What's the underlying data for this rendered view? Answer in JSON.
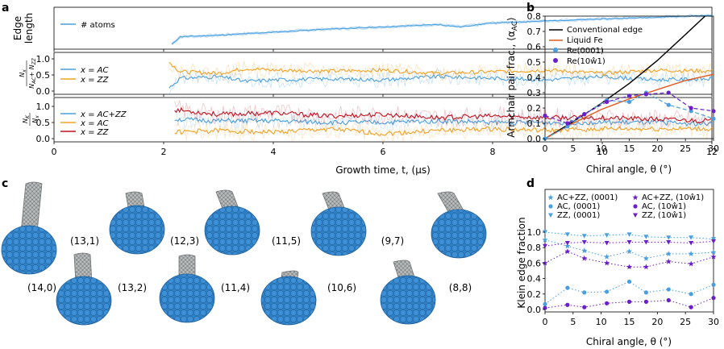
{
  "panel_labels": {
    "a": "a",
    "b": "b",
    "c": "c",
    "d": "d"
  },
  "colors": {
    "blue": "#4a9fe0",
    "orange": "#f2a124",
    "red": "#c1121f",
    "black": "#000000",
    "liquid": "#e05a1e",
    "purple": "#6a1fc9",
    "nano_blue": "#3d8fd6",
    "tube_gray": "#8a8f90"
  },
  "panel_a": {
    "xlabel": "Growth time, t, (µs)",
    "xticks": [
      "0",
      "2",
      "4",
      "6",
      "8",
      "10",
      "12"
    ],
    "top": {
      "ylabel_line1": "Edge",
      "ylabel_line2": "length",
      "legend": [
        "# atoms"
      ]
    },
    "mid": {
      "ylabel": "N_x / (N_AC+N_ZZ)",
      "ylabel_num": "N",
      "ylabel_num_sub": "x",
      "ylabel_den": "N",
      "ylabel_den_sub": "AC",
      "ylabel_den_mid": "+ N",
      "ylabel_den_sub2": "ZZ",
      "yticks": [
        "0.0",
        "0.5",
        "1.0"
      ],
      "legend": [
        "x = AC",
        "x = ZZ"
      ]
    },
    "bot": {
      "ylabel_num": "N",
      "ylabel_num_sub": "K",
      "ylabel_den": "N",
      "ylabel_den_sub": "x",
      "yticks": [
        "0.0",
        "0.5",
        "1.0"
      ],
      "legend": [
        "x = AC+ZZ",
        "x = AC",
        "x = ZZ"
      ]
    }
  },
  "panel_b": {
    "ylabel": "Armchair pair frac., ⟨α",
    "ylabel_sub": "AC",
    "ylabel_end": "⟩",
    "xlabel": "Chiral angle, θ (°)",
    "xticks": [
      "0",
      "5",
      "10",
      "15",
      "20",
      "25",
      "30"
    ],
    "yticks": [
      "0.0",
      "0.1",
      "0.2",
      "0.3",
      "0.4",
      "0.5",
      "0.6",
      "0.7",
      "0.8"
    ],
    "legend": [
      "Conventional edge",
      "Liquid Fe",
      "Re(0001)",
      "Re(10ŵ1)"
    ]
  },
  "panel_c": {
    "chiralities_top": [
      "(13,1)",
      "(12,3)",
      "(11,5)",
      "(9,7)"
    ],
    "chiralities_bottom": [
      "(14,0)",
      "(13,2)",
      "(11,4)",
      "(10,6)",
      "(8,8)"
    ]
  },
  "panel_d": {
    "ylabel": "Klein edge fraction",
    "xlabel": "Chiral angle, θ (°)",
    "xticks": [
      "0",
      "5",
      "10",
      "15",
      "20",
      "25",
      "30"
    ],
    "yticks": [
      "0.0",
      "0.2",
      "0.4",
      "0.6",
      "0.8",
      "1.0"
    ],
    "legend": [
      "AC+ZZ, (0001)",
      "AC, (0001)",
      "ZZ, (0001)",
      "AC+ZZ, (10ŵ1)",
      "AC, (10ŵ1)",
      "ZZ, (10ŵ1)"
    ]
  },
  "chart_data": [
    {
      "type": "line",
      "panel": "a-top",
      "xlabel": "Growth time, t, (µs)",
      "ylabel": "Edge length",
      "xlim": [
        0,
        12
      ],
      "series": [
        {
          "name": "# atoms",
          "x": [
            2.15,
            2.3,
            3,
            4,
            5,
            6,
            7,
            7.4,
            8,
            9,
            10,
            11,
            12
          ],
          "y": [
            0.05,
            0.3,
            0.35,
            0.45,
            0.55,
            0.62,
            0.7,
            0.62,
            0.75,
            0.82,
            0.88,
            0.94,
            1.0
          ]
        }
      ]
    },
    {
      "type": "line",
      "panel": "a-mid",
      "ylabel": "N_x/(N_AC+N_ZZ)",
      "xlim": [
        0,
        12
      ],
      "ylim": [
        0,
        1
      ],
      "series": [
        {
          "name": "x = AC",
          "x": [
            2.1,
            2.3,
            3,
            3.5,
            4,
            5,
            6,
            7,
            8,
            9,
            10,
            11,
            12
          ],
          "y": [
            0.1,
            0.4,
            0.45,
            0.3,
            0.35,
            0.38,
            0.35,
            0.45,
            0.4,
            0.35,
            0.45,
            0.35,
            0.38
          ]
        },
        {
          "name": "x = ZZ",
          "x": [
            2.1,
            2.3,
            3,
            3.5,
            4,
            5,
            6,
            7,
            8,
            9,
            10,
            11,
            12
          ],
          "y": [
            0.9,
            0.6,
            0.55,
            0.7,
            0.65,
            0.62,
            0.65,
            0.55,
            0.6,
            0.65,
            0.55,
            0.65,
            0.62
          ]
        }
      ]
    },
    {
      "type": "line",
      "panel": "a-bot",
      "ylabel": "N_K/N_x",
      "xlim": [
        0,
        12
      ],
      "ylim": [
        0,
        1.2
      ],
      "series": [
        {
          "name": "x = AC+ZZ",
          "x": [
            2.2,
            3,
            4,
            5,
            6,
            7,
            8,
            9,
            10,
            11,
            12
          ],
          "y": [
            0.6,
            0.55,
            0.55,
            0.5,
            0.5,
            0.55,
            0.5,
            0.5,
            0.5,
            0.5,
            0.45
          ]
        },
        {
          "name": "x = AC",
          "x": [
            2.2,
            3,
            4,
            5,
            6,
            7,
            8,
            9,
            10,
            11,
            12
          ],
          "y": [
            0.2,
            0.25,
            0.2,
            0.3,
            0.15,
            0.25,
            0.3,
            0.25,
            0.3,
            0.3,
            0.3
          ]
        },
        {
          "name": "x = ZZ",
          "x": [
            2.2,
            3,
            4,
            5,
            6,
            7,
            8,
            9,
            10,
            11,
            12
          ],
          "y": [
            0.9,
            0.75,
            0.8,
            0.7,
            0.75,
            0.65,
            0.7,
            0.65,
            0.65,
            0.6,
            0.55
          ]
        }
      ]
    },
    {
      "type": "line",
      "panel": "b",
      "xlabel": "Chiral angle, θ (°)",
      "ylabel": "Armchair pair frac., ⟨α_AC⟩",
      "xlim": [
        0,
        30
      ],
      "ylim": [
        0,
        0.8
      ],
      "series": [
        {
          "name": "Conventional edge",
          "x": [
            0,
            5,
            10,
            15,
            20,
            25,
            28.5
          ],
          "y": [
            0,
            0.11,
            0.23,
            0.36,
            0.51,
            0.68,
            0.8
          ]
        },
        {
          "name": "Liquid Fe",
          "x": [
            0,
            5,
            10,
            15,
            20,
            25,
            30
          ],
          "y": [
            0,
            0.1,
            0.19,
            0.26,
            0.32,
            0.38,
            0.42
          ]
        },
        {
          "name": "Re(0001)",
          "x": [
            0,
            4,
            7,
            11,
            15,
            18,
            22,
            26,
            30
          ],
          "y": [
            0.0,
            0.08,
            0.16,
            0.25,
            0.24,
            0.3,
            0.22,
            0.18,
            0.13
          ]
        },
        {
          "name": "Re(10ŵ1)",
          "x": [
            0,
            4,
            7,
            11,
            15,
            18,
            22,
            26,
            30
          ],
          "y": [
            0.15,
            0.1,
            0.16,
            0.24,
            0.28,
            0.29,
            0.3,
            0.2,
            0.18
          ]
        }
      ]
    },
    {
      "type": "scatter",
      "panel": "d",
      "xlabel": "Chiral angle, θ (°)",
      "ylabel": "Klein edge fraction",
      "xlim": [
        0,
        30
      ],
      "ylim": [
        0,
        1.0
      ],
      "x": [
        0,
        4,
        7,
        11,
        15,
        18,
        22,
        26,
        30
      ],
      "series": [
        {
          "name": "AC+ZZ, (0001)",
          "marker": "star",
          "color": "#4a9fe0",
          "values": [
            0.9,
            0.82,
            0.76,
            0.68,
            0.75,
            0.66,
            0.72,
            0.72,
            0.74
          ]
        },
        {
          "name": "AC, (0001)",
          "marker": "circle",
          "color": "#4a9fe0",
          "values": [
            0.07,
            0.28,
            0.22,
            0.23,
            0.36,
            0.22,
            0.26,
            0.2,
            0.32
          ]
        },
        {
          "name": "ZZ, (0001)",
          "marker": "triangle",
          "color": "#4a9fe0",
          "values": [
            1.0,
            0.97,
            0.95,
            0.96,
            0.97,
            0.94,
            0.93,
            0.93,
            0.91
          ]
        },
        {
          "name": "AC+ZZ, (10ŵ1)",
          "marker": "star",
          "color": "#6a1fc9",
          "values": [
            0.6,
            0.75,
            0.66,
            0.6,
            0.55,
            0.55,
            0.62,
            0.59,
            0.68
          ]
        },
        {
          "name": "AC, (10ŵ1)",
          "marker": "circle",
          "color": "#6a1fc9",
          "values": [
            0.02,
            0.06,
            0.03,
            0.08,
            0.1,
            0.1,
            0.12,
            0.03,
            0.15
          ]
        },
        {
          "name": "ZZ, (10ŵ1)",
          "marker": "triangle",
          "color": "#6a1fc9",
          "values": [
            0.82,
            0.86,
            0.87,
            0.86,
            0.87,
            0.87,
            0.87,
            0.86,
            0.88
          ]
        }
      ]
    }
  ]
}
